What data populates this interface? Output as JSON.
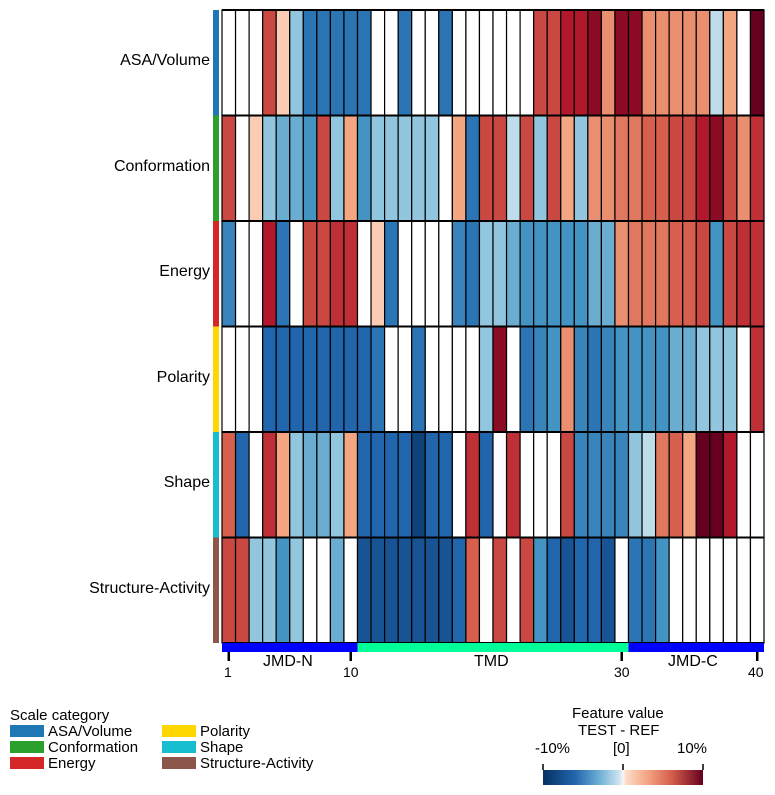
{
  "chart_data": {
    "type": "heatmap",
    "rows": [
      "ASA/Volume",
      "Conformation",
      "Energy",
      "Polarity",
      "Shape",
      "Structure-Activity"
    ],
    "row_colors": [
      "#1f77b4",
      "#2ca02c",
      "#d62728",
      "#ffd700",
      "#17becf",
      "#8c564b"
    ],
    "columns": 40,
    "x_ticks": [
      1,
      10,
      30,
      40
    ],
    "regions": [
      {
        "label": "JMD-N",
        "start": 1,
        "end": 10,
        "color": "#0000ff"
      },
      {
        "label": "TMD",
        "start": 11,
        "end": 30,
        "color": "#00ff99"
      },
      {
        "label": "JMD-C",
        "start": 31,
        "end": 40,
        "color": "#0000ff"
      }
    ],
    "colorscale": {
      "min": -10,
      "max": 10,
      "units": "%"
    },
    "values": [
      [
        0,
        0,
        0,
        6,
        1,
        -2,
        -6,
        -6,
        -6,
        -6,
        -6,
        0,
        0,
        -6,
        0,
        0,
        -6,
        0,
        0,
        0,
        0,
        0,
        0,
        6,
        6,
        8,
        8,
        9,
        3,
        9,
        9,
        3,
        3,
        3,
        3,
        3,
        -1,
        2,
        0,
        10
      ],
      [
        6,
        0,
        1,
        -2,
        -3,
        -3,
        -4,
        6,
        -2,
        2,
        -4,
        -2,
        -2,
        -2,
        -2,
        -2,
        0,
        2,
        -6,
        6,
        6,
        -1,
        6,
        -2,
        6,
        2,
        -2,
        3,
        3,
        4,
        4,
        5,
        5,
        6,
        6,
        8,
        9,
        6,
        3,
        7
      ],
      [
        -5,
        0,
        0,
        8,
        -6,
        0,
        6,
        6,
        7,
        7,
        0,
        1,
        -6,
        0,
        0,
        0,
        0,
        -5,
        -6,
        -2,
        -2,
        -3,
        -4,
        -4,
        -4,
        -4,
        -4,
        -3,
        -3,
        3,
        4,
        4,
        4,
        5,
        5,
        6,
        -4,
        6,
        7,
        7
      ],
      [
        0,
        0,
        0,
        -7,
        -7,
        -7,
        -7,
        -7,
        -7,
        -7,
        -7,
        -6,
        0,
        0,
        -6,
        0,
        0,
        0,
        0,
        -2,
        9,
        0,
        -6,
        -5,
        -4,
        3,
        -5,
        -6,
        -5,
        -4,
        -4,
        -4,
        -4,
        -3,
        -3,
        -2,
        -2,
        -2,
        0,
        7
      ],
      [
        5,
        -7,
        0,
        7,
        2,
        -2,
        -3,
        -3,
        -2,
        2,
        -7,
        -7,
        -7,
        -7,
        -9,
        -7,
        -7,
        0,
        7,
        -7,
        0,
        7,
        0,
        0,
        0,
        6,
        -5,
        -5,
        -5,
        -5,
        -2,
        -1,
        4,
        5,
        2,
        10,
        10,
        8,
        0,
        0
      ],
      [
        6,
        6,
        -2,
        -2,
        -4,
        -2,
        0,
        0,
        -3,
        0,
        -8,
        -8,
        -8,
        -8,
        -8,
        -8,
        -8,
        -7,
        5,
        0,
        6,
        0,
        6,
        -4,
        -7,
        -8,
        -7,
        -7,
        -8,
        0,
        -6,
        -6,
        -4,
        0,
        0,
        0,
        0,
        0,
        0,
        0
      ]
    ]
  },
  "row_labels": {
    "r0": "ASA/Volume",
    "r1": "Conformation",
    "r2": "Energy",
    "r3": "Polarity",
    "r4": "Shape",
    "r5": "Structure-Activity"
  },
  "axis": {
    "tick_1": "1",
    "tick_10": "10",
    "tick_30": "30",
    "tick_40": "40",
    "region_jmdn": "JMD-N",
    "region_tmd": "TMD",
    "region_jmdc": "JMD-C"
  },
  "legend": {
    "title": "Scale category",
    "items": [
      {
        "label": "ASA/Volume",
        "color": "#1f77b4"
      },
      {
        "label": "Conformation",
        "color": "#2ca02c"
      },
      {
        "label": "Energy",
        "color": "#d62728"
      },
      {
        "label": "Polarity",
        "color": "#ffd700"
      },
      {
        "label": "Shape",
        "color": "#17becf"
      },
      {
        "label": "Structure-Activity",
        "color": "#8c564b"
      }
    ]
  },
  "colorbar": {
    "title": "Feature value",
    "subtitle": "TEST - REF",
    "tick_min": "-10%",
    "tick_mid": "[0]",
    "tick_max": "10%"
  }
}
